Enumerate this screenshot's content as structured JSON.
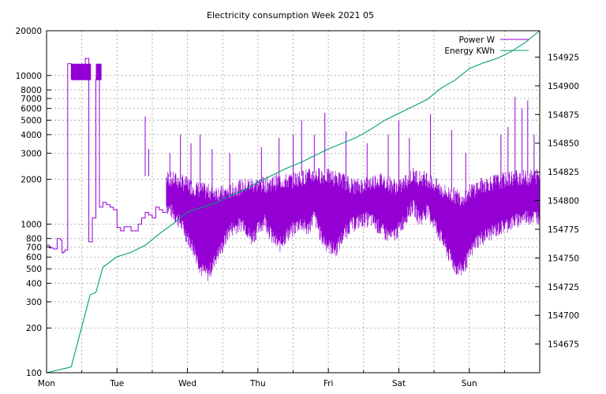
{
  "chart_data": {
    "type": "line",
    "title": "Electricity consumption Week 2021 05",
    "grid": true,
    "legend_position": "top-right",
    "x": {
      "unit": "days",
      "range": [
        0,
        7
      ],
      "tick_labels": [
        "Mon",
        "Tue",
        "Wed",
        "Thu",
        "Fri",
        "Sat",
        "Sun"
      ],
      "tick_positions": [
        0,
        1,
        2,
        3,
        4,
        5,
        6
      ],
      "minor_gridlines": [
        0.5,
        1.5,
        2.5,
        3.5,
        4.5,
        5.5,
        6.5
      ]
    },
    "y_left": {
      "scale": "log",
      "range": [
        100,
        20000
      ],
      "ticks": [
        100,
        200,
        300,
        400,
        500,
        600,
        700,
        800,
        1000,
        2000,
        3000,
        4000,
        5000,
        6000,
        7000,
        8000,
        10000,
        20000
      ],
      "tick_labels": [
        "100",
        "200",
        "300",
        "400",
        "500",
        "600",
        "700",
        "800",
        "1000",
        "2000",
        "3000",
        "4000",
        "5000",
        "6000",
        "7000",
        "8000",
        "10000",
        "20000"
      ]
    },
    "y_right": {
      "scale": "linear",
      "range": [
        154650,
        154948
      ],
      "ticks": [
        154675,
        154700,
        154725,
        154750,
        154775,
        154800,
        154825,
        154850,
        154875,
        154900,
        154925
      ],
      "tick_labels": [
        "154675",
        "154700",
        "154725",
        "154750",
        "154775",
        "154800",
        "154825",
        "154850",
        "154875",
        "154900",
        "154925"
      ]
    },
    "series": [
      {
        "name": "Power W",
        "axis": "left",
        "color": "#9400d3",
        "style": "steps",
        "x": [
          0,
          0.04,
          0.1,
          0.15,
          0.2,
          0.22,
          0.24,
          0.26,
          0.3,
          0.35,
          0.38,
          0.42,
          0.55,
          0.6,
          0.65,
          0.7,
          0.75,
          0.8,
          0.85,
          0.9,
          0.95,
          1.0,
          1.05,
          1.1,
          1.2,
          1.3,
          1.35,
          1.4,
          1.45,
          1.5,
          1.55,
          1.6,
          1.65,
          1.7
        ],
        "values": [
          720,
          690,
          680,
          800,
          780,
          640,
          650,
          670,
          12000,
          9500,
          9500,
          9500,
          13000,
          760,
          1100,
          9500,
          1300,
          1400,
          1350,
          1300,
          1250,
          950,
          900,
          960,
          900,
          1000,
          1100,
          1200,
          1150,
          1100,
          1300,
          1250,
          1200,
          1200
        ],
        "band_profile": {
          "x": [
            1.7,
            1.8,
            1.9,
            2.0,
            2.1,
            2.2,
            2.3,
            2.4,
            2.5,
            2.6,
            2.7,
            2.8,
            2.9,
            3.0,
            3.1,
            3.2,
            3.3,
            3.4,
            3.5,
            3.6,
            3.7,
            3.8,
            3.9,
            4.0,
            4.1,
            4.2,
            4.3,
            4.4,
            4.5,
            4.6,
            4.7,
            4.8,
            4.9,
            5.0,
            5.1,
            5.2,
            5.3,
            5.4,
            5.5,
            5.6,
            5.7,
            5.8,
            5.9,
            6.0,
            6.1,
            6.2,
            6.3,
            6.4,
            6.5,
            6.6,
            6.7,
            6.8,
            6.9,
            7.0
          ],
          "low": [
            1300,
            1150,
            1000,
            800,
            650,
            480,
            450,
            580,
            700,
            900,
            950,
            1000,
            780,
            900,
            1050,
            800,
            700,
            820,
            900,
            1000,
            900,
            1100,
            800,
            700,
            650,
            800,
            950,
            1000,
            1050,
            1050,
            950,
            850,
            800,
            900,
            1100,
            1300,
            1050,
            1200,
            1000,
            800,
            620,
            500,
            480,
            600,
            750,
            800,
            850,
            900,
            950,
            1000,
            1050,
            1100,
            1100,
            1100
          ],
          "high": [
            2100,
            2050,
            2000,
            1900,
            1800,
            1750,
            1700,
            1700,
            1650,
            1700,
            1800,
            1850,
            1900,
            1900,
            1900,
            1950,
            2000,
            2000,
            2050,
            2100,
            2150,
            2200,
            2200,
            2150,
            2100,
            2050,
            1900,
            1850,
            1900,
            1950,
            2050,
            2000,
            1900,
            1800,
            2000,
            2200,
            2100,
            2100,
            1900,
            1750,
            1650,
            1600,
            1550,
            1700,
            1800,
            1900,
            1950,
            2000,
            2050,
            2100,
            2150,
            2100,
            2150,
            2200
          ]
        },
        "spikes": [
          {
            "x": 1.4,
            "value": 5300
          },
          {
            "x": 1.45,
            "value": 3200
          },
          {
            "x": 1.75,
            "value": 3000
          },
          {
            "x": 1.9,
            "value": 4000
          },
          {
            "x": 2.05,
            "value": 3500
          },
          {
            "x": 2.18,
            "value": 4000
          },
          {
            "x": 2.35,
            "value": 3200
          },
          {
            "x": 2.6,
            "value": 3000
          },
          {
            "x": 3.05,
            "value": 3300
          },
          {
            "x": 3.3,
            "value": 3800
          },
          {
            "x": 3.5,
            "value": 4000
          },
          {
            "x": 3.62,
            "value": 5000
          },
          {
            "x": 3.8,
            "value": 4000
          },
          {
            "x": 3.95,
            "value": 5600
          },
          {
            "x": 4.25,
            "value": 4200
          },
          {
            "x": 4.55,
            "value": 3500
          },
          {
            "x": 4.85,
            "value": 4000
          },
          {
            "x": 5.0,
            "value": 5000
          },
          {
            "x": 5.15,
            "value": 3800
          },
          {
            "x": 5.45,
            "value": 5500
          },
          {
            "x": 5.75,
            "value": 4300
          },
          {
            "x": 5.95,
            "value": 3000
          },
          {
            "x": 6.45,
            "value": 4000
          },
          {
            "x": 6.55,
            "value": 4500
          },
          {
            "x": 6.65,
            "value": 7200
          },
          {
            "x": 6.75,
            "value": 6000
          },
          {
            "x": 6.83,
            "value": 6800
          },
          {
            "x": 6.92,
            "value": 4000
          }
        ]
      },
      {
        "name": "Energy KWh",
        "axis": "right",
        "color": "#009e73",
        "style": "line",
        "x": [
          0,
          0.35,
          0.5,
          0.62,
          0.7,
          0.8,
          1.0,
          1.2,
          1.4,
          1.6,
          1.8,
          2.0,
          2.2,
          2.4,
          2.6,
          2.8,
          3.0,
          3.2,
          3.4,
          3.6,
          3.8,
          4.0,
          4.2,
          4.4,
          4.6,
          4.8,
          5.0,
          5.2,
          5.4,
          5.6,
          5.8,
          6.0,
          6.2,
          6.4,
          6.6,
          6.8,
          7.0
        ],
        "values": [
          154650,
          154655,
          154690,
          154718,
          154720,
          154742,
          154751,
          154755,
          154761,
          154771,
          154780,
          154790,
          154794,
          154798,
          154804,
          154809,
          154816,
          154822,
          154828,
          154833,
          154839,
          154845,
          154850,
          154855,
          154862,
          154870,
          154876,
          154882,
          154888,
          154898,
          154905,
          154915,
          154920,
          154924,
          154930,
          154938,
          154948
        ]
      }
    ]
  }
}
